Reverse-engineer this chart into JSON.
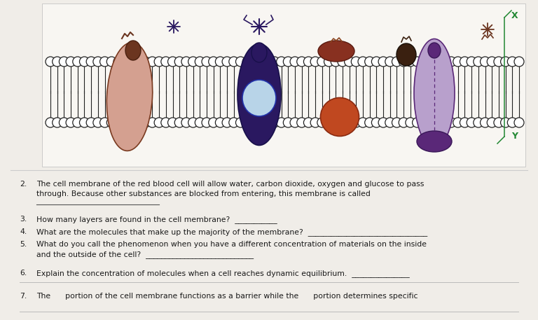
{
  "background_color": "#f0ede8",
  "diagram_bg": "#f8f6f2",
  "text_color": "#1a1a1a",
  "questions": [
    {
      "num": "2.",
      "text_line1": "The cell membrane of the red blood cell will allow water, carbon dioxide, oxygen and glucose to pass",
      "text_line2": "through. Because other substances are blocked from entering, this membrane is called",
      "answer_line": true
    },
    {
      "num": "3.",
      "text_line1": "How many layers are found in the cell membrane?  ___________",
      "text_line2": null,
      "answer_line": false
    },
    {
      "num": "4.",
      "text_line1": "What are the molecules that make up the majority of the membrane?  _______________________________",
      "text_line2": null,
      "answer_line": false
    },
    {
      "num": "5.",
      "text_line1": "What do you call the phenomenon when you have a different concentration of materials on the inside",
      "text_line2": "and the outside of the cell?  ____________________________",
      "answer_line": false
    },
    {
      "num": "6.",
      "text_line1": "Explain the concentration of molecules when a cell reaches dynamic equilibrium.  _______________",
      "text_line2": null,
      "answer_line": false
    },
    {
      "num": "7.",
      "text_line1": "The      portion of the cell membrane functions as a barrier while the      portion determines specific",
      "text_line2": null,
      "answer_line": false
    }
  ],
  "font_size": 7.8,
  "membrane_color": "#222222",
  "head_color": "#ffffff",
  "prot1_color": "#d4a090",
  "prot1_top_color": "#6b3520",
  "prot2_color": "#2a1860",
  "prot2_inner_color": "#b8d4e8",
  "prot3_color": "#c04820",
  "prot4_color": "#b8a0cc",
  "prot4_dark": "#5a2878",
  "green_color": "#228833",
  "purple_marker": "#2a1860",
  "brown_marker": "#6b3520",
  "red_top_color": "#883020"
}
